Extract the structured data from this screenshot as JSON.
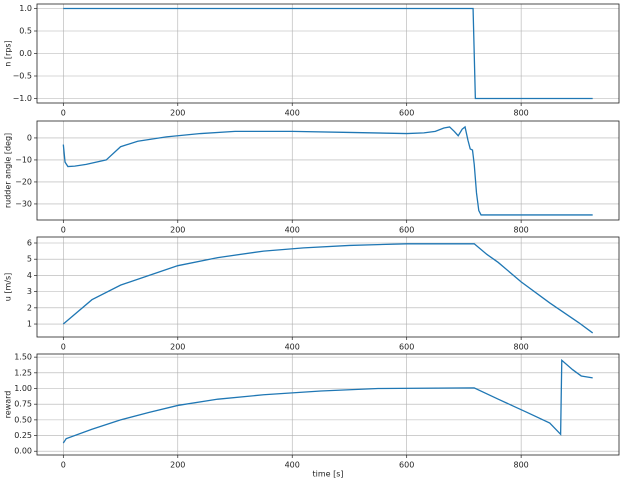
{
  "chart_data": [
    {
      "type": "line",
      "ylabel": "n [rps]",
      "color": "#1f77b4",
      "grid": true,
      "x": [
        0,
        716,
        720,
        925
      ],
      "values": [
        1,
        1,
        -1,
        -1
      ],
      "xlim": [
        -46,
        971
      ],
      "xticks": [
        0,
        200,
        400,
        600,
        800
      ],
      "ylim": [
        -1.1,
        1.1
      ],
      "yticks": [
        {
          "value": -1,
          "label": "−1.0"
        },
        {
          "value": -0.5,
          "label": "−0.5"
        },
        {
          "value": 0,
          "label": "0.0"
        },
        {
          "value": 0.5,
          "label": "0.5"
        },
        {
          "value": 1,
          "label": "1.0"
        }
      ]
    },
    {
      "type": "line",
      "ylabel": "rudder angle [deg]",
      "color": "#1f77b4",
      "grid": true,
      "x": [
        0,
        3,
        8,
        20,
        40,
        75,
        100,
        130,
        180,
        240,
        300,
        400,
        500,
        600,
        630,
        650,
        665,
        675,
        683,
        690,
        697,
        702,
        707,
        711,
        715,
        718,
        722,
        726,
        730,
        925
      ],
      "values": [
        -3,
        -11,
        -13,
        -12.8,
        -12,
        -10,
        -4,
        -1.5,
        0.5,
        2,
        3,
        3,
        2.5,
        2,
        2.3,
        3,
        4.5,
        5,
        3,
        1,
        4,
        5,
        -1,
        -5,
        -5.5,
        -12,
        -25,
        -33,
        -35,
        -35
      ],
      "xlim": [
        -46,
        971
      ],
      "xticks": [
        0,
        200,
        400,
        600,
        800
      ],
      "ylim": [
        -37.3,
        7.7
      ],
      "yticks": [
        {
          "value": -30,
          "label": "−30"
        },
        {
          "value": -20,
          "label": "−20"
        },
        {
          "value": -10,
          "label": "−10"
        },
        0
      ]
    },
    {
      "type": "line",
      "ylabel": "u [m/s]",
      "color": "#1f77b4",
      "grid": true,
      "x": [
        0,
        50,
        100,
        150,
        200,
        270,
        350,
        420,
        500,
        600,
        718,
        740,
        760,
        800,
        850,
        900,
        925
      ],
      "values": [
        1,
        2.5,
        3.4,
        4,
        4.6,
        5.1,
        5.5,
        5.7,
        5.85,
        5.95,
        5.95,
        5.3,
        4.8,
        3.6,
        2.3,
        1.1,
        0.45
      ],
      "xlim": [
        -46,
        971
      ],
      "xticks": [
        0,
        200,
        400,
        600,
        800
      ],
      "ylim": [
        0.2,
        6.37
      ],
      "yticks": [
        1,
        2,
        3,
        4,
        5,
        6
      ]
    },
    {
      "type": "line",
      "ylabel": "reward",
      "xlabel": "time [s]",
      "color": "#1f77b4",
      "grid": true,
      "x": [
        0,
        5,
        50,
        100,
        150,
        200,
        270,
        350,
        450,
        550,
        718,
        760,
        810,
        850,
        869,
        871,
        890,
        905,
        925
      ],
      "values": [
        0.13,
        0.2,
        0.35,
        0.5,
        0.62,
        0.73,
        0.83,
        0.9,
        0.96,
        1.0,
        1.01,
        0.83,
        0.62,
        0.45,
        0.27,
        1.45,
        1.3,
        1.2,
        1.17
      ],
      "xlim": [
        -46,
        971
      ],
      "xticks": [
        0,
        200,
        400,
        600,
        800
      ],
      "ylim": [
        -0.06,
        1.55
      ],
      "yticks": [
        {
          "value": 0,
          "label": "0.00"
        },
        {
          "value": 0.25,
          "label": "0.25"
        },
        {
          "value": 0.5,
          "label": "0.50"
        },
        {
          "value": 0.75,
          "label": "0.75"
        },
        {
          "value": 1,
          "label": "1.00"
        },
        {
          "value": 1.25,
          "label": "1.25"
        },
        {
          "value": 1.5,
          "label": "1.50"
        }
      ]
    }
  ]
}
